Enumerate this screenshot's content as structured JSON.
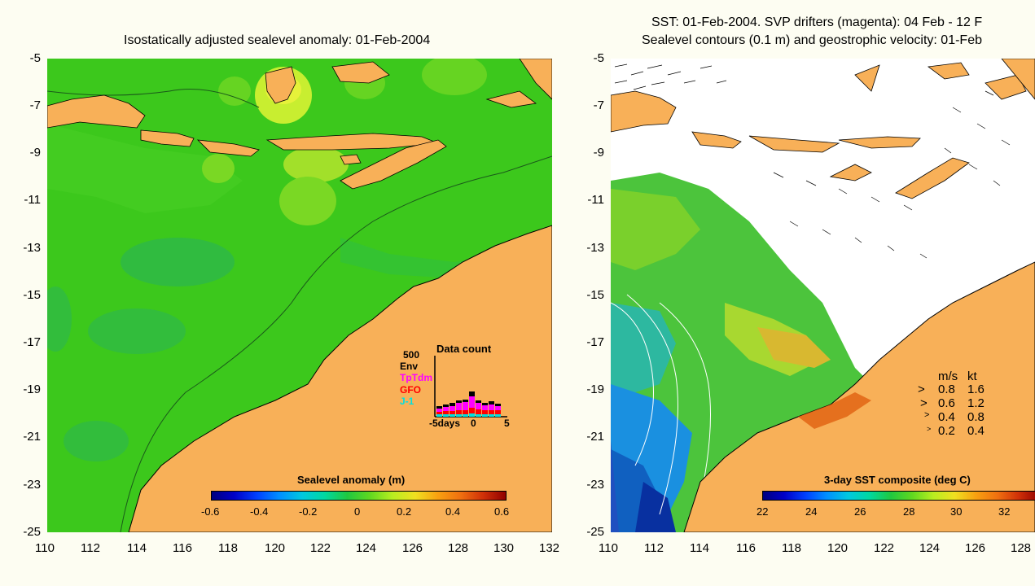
{
  "left": {
    "title": "Isostatically adjusted sealevel anomaly: 01-Feb-2004",
    "y_ticks": [
      "-5",
      "-7",
      "-9",
      "-11",
      "-13",
      "-15",
      "-17",
      "-19",
      "-21",
      "-23",
      "-25"
    ],
    "x_ticks": [
      "110",
      "112",
      "114",
      "116",
      "118",
      "120",
      "122",
      "124",
      "126",
      "128",
      "130",
      "132"
    ],
    "colorbar": {
      "label": "Sealevel anomaly (m)",
      "ticks": [
        "-0.6",
        "-0.4",
        "-0.2",
        "0",
        "0.2",
        "0.4",
        "0.6"
      ]
    },
    "data_count": {
      "title": "Data count",
      "max": "500",
      "legend": [
        "Env",
        "TpTdm",
        "GFO",
        "J-1"
      ],
      "legend_colors": [
        "#000000",
        "#ff00ff",
        "#ff0000",
        "#00e0e0"
      ],
      "x_labels": [
        "-5days",
        "0",
        "5"
      ]
    }
  },
  "right": {
    "title_line1": "SST: 01-Feb-2004. SVP drifters (magenta): 04 Feb - 12 F",
    "title_line2": "Sealevel contours (0.1 m) and geostrophic velocity: 01-Feb",
    "y_ticks": [
      "-5",
      "-7",
      "-9",
      "-11",
      "-13",
      "-15",
      "-17",
      "-19",
      "-21",
      "-23",
      "-25"
    ],
    "x_ticks": [
      "110",
      "112",
      "114",
      "116",
      "118",
      "120",
      "122",
      "124",
      "126",
      "128"
    ],
    "colorbar": {
      "label": "3-day SST composite (deg C)",
      "ticks": [
        "22",
        "24",
        "26",
        "28",
        "30",
        "32"
      ]
    },
    "speed_legend": {
      "header_ms": "m/s",
      "header_kt": "kt",
      "rows": [
        {
          "ms": "0.8",
          "kt": "1.6"
        },
        {
          "ms": "0.6",
          "kt": "1.2"
        },
        {
          "ms": "0.4",
          "kt": "0.8"
        },
        {
          "ms": "0.2",
          "kt": "0.4"
        }
      ]
    }
  },
  "colors": {
    "background": "#fdfdf2",
    "land": "#f8b058",
    "ocean_green": "#3cc81c",
    "white_cloud": "#ffffff"
  }
}
